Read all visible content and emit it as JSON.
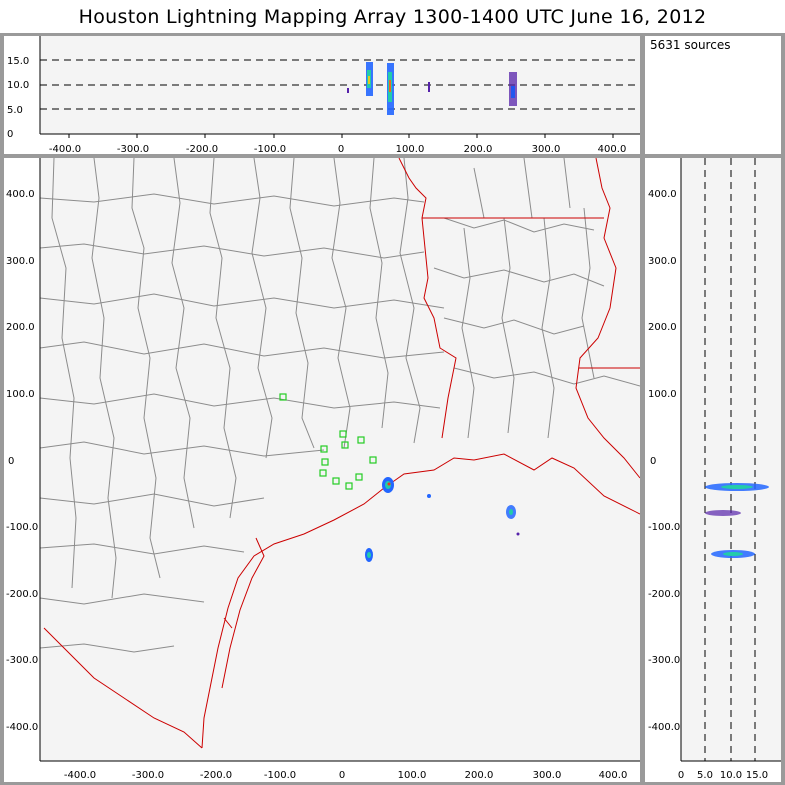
{
  "title": "Houston Lightning Mapping Array   1300-1400 UTC  June 16, 2012",
  "source_count": "5631 sources",
  "top_panel": {
    "x_ticks": [
      "-400.0",
      "-300.0",
      "-200.0",
      "-100.0",
      "0",
      "100.0",
      "200.0",
      "300.0",
      "400.0"
    ],
    "y_ticks": [
      "0",
      "5.0",
      "10.0",
      "15.0"
    ]
  },
  "map_panel": {
    "x_ticks": [
      "-400.0",
      "-300.0",
      "-200.0",
      "-100.0",
      "0",
      "100.0",
      "200.0",
      "300.0",
      "400.0"
    ],
    "y_ticks": [
      "400.0",
      "300.0",
      "200.0",
      "100.0",
      "0",
      "-100.0",
      "-200.0",
      "-300.0",
      "-400.0"
    ]
  },
  "side_panel": {
    "x_ticks": [
      "0",
      "5.0",
      "10.0",
      "15.0"
    ],
    "y_ticks": [
      "400.0",
      "300.0",
      "200.0",
      "100.0",
      "0",
      "-100.0",
      "-200.0",
      "-300.0",
      "-400.0"
    ]
  },
  "colors": {
    "background": "#f4f4f4",
    "frame": "#9a9a9a",
    "county_lines": "#8c8c8c",
    "state_and_coast_lines": "#cc0000",
    "stations": "#22cc22"
  }
}
